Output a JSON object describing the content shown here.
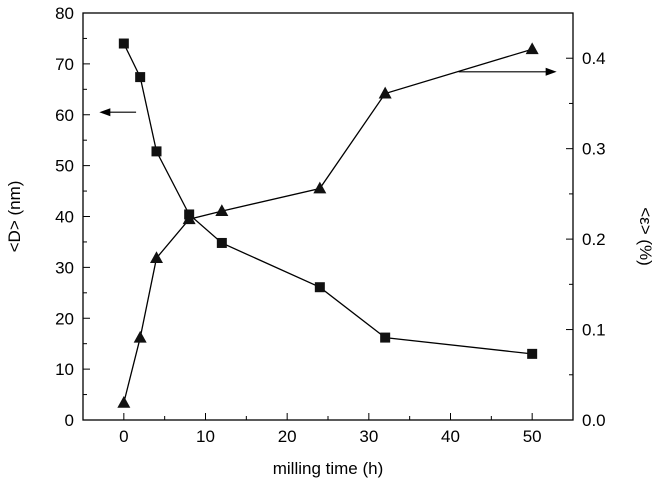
{
  "chart_data": {
    "type": "line",
    "title": "",
    "xlabel": "milling time (h)",
    "ylabel_left": "<D> (nm)",
    "ylabel_right": "<ε> (%)",
    "xlim": [
      -5,
      55
    ],
    "ylim_left": [
      0,
      80
    ],
    "ylim_right": [
      0.0,
      0.45
    ],
    "x_ticks": [
      "0",
      "10",
      "20",
      "30",
      "40",
      "50"
    ],
    "y_left_ticks": [
      "0",
      "10",
      "20",
      "30",
      "40",
      "50",
      "60",
      "70",
      "80"
    ],
    "y_right_ticks": [
      "0.0",
      "0.1",
      "0.2",
      "0.3",
      "0.4"
    ],
    "grid": false,
    "series": [
      {
        "axis": "left",
        "marker": "square",
        "x": [
          0,
          2,
          4,
          8,
          12,
          24,
          32,
          50
        ],
        "values": [
          74,
          67.4,
          52.8,
          40.4,
          34.8,
          26.1,
          16.2,
          13
        ]
      },
      {
        "axis": "right",
        "marker": "triangle",
        "x": [
          0,
          2,
          4,
          8,
          12,
          24,
          32,
          50
        ],
        "values": [
          0.019,
          0.091,
          0.179,
          0.222,
          0.231,
          0.256,
          0.361,
          0.41
        ]
      }
    ],
    "annotations": [
      {
        "type": "arrow",
        "direction": "left",
        "points_to": "left axis",
        "data_y": 60.5,
        "from_x": 1.5,
        "to_x": -3
      },
      {
        "type": "arrow",
        "direction": "right",
        "points_to": "right axis",
        "data_y": 0.385,
        "from_x": 41,
        "to_x": 53
      }
    ],
    "colors": {
      "line": "#000000",
      "marker": "#111111",
      "background": "#ffffff"
    }
  }
}
